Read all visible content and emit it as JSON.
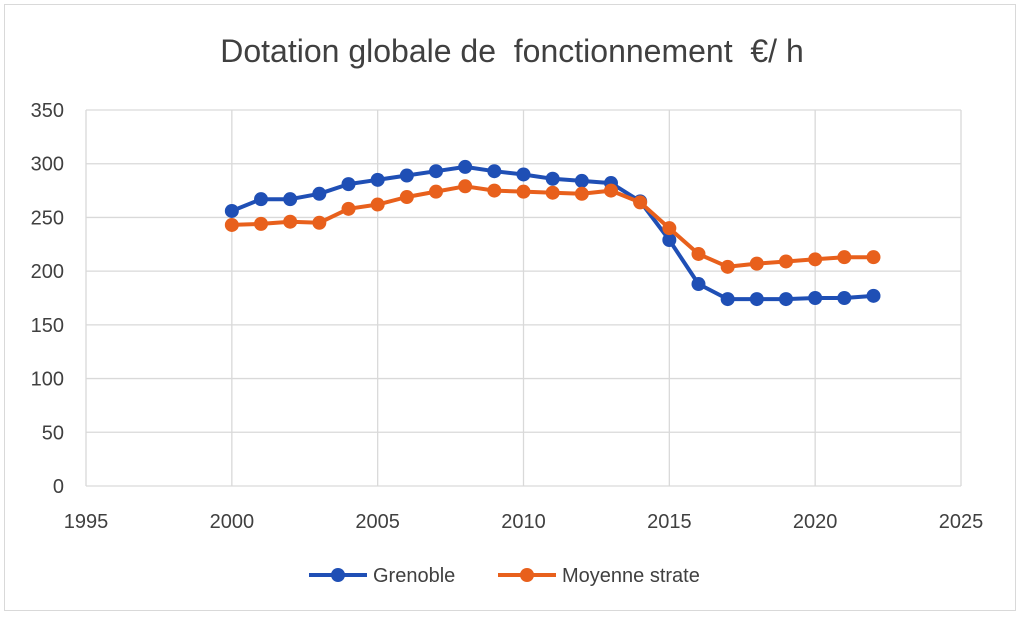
{
  "chart_data": {
    "type": "scatter",
    "title": "Dotation globale de  fonctionnement  €/ h",
    "xlim": [
      1995,
      2025
    ],
    "ylim": [
      0,
      350
    ],
    "xticks": [
      1995,
      2000,
      2005,
      2010,
      2015,
      2020,
      2025
    ],
    "yticks": [
      0,
      50,
      100,
      150,
      200,
      250,
      300,
      350
    ],
    "grid": true,
    "legend_position": "bottom",
    "x": [
      2000,
      2001,
      2002,
      2003,
      2004,
      2005,
      2006,
      2007,
      2008,
      2009,
      2010,
      2011,
      2012,
      2013,
      2014,
      2015,
      2016,
      2017,
      2018,
      2019,
      2020,
      2021,
      2022
    ],
    "series": [
      {
        "name": "Grenoble",
        "color": "#1f4fb5",
        "values": [
          256,
          267,
          267,
          272,
          281,
          285,
          289,
          293,
          297,
          293,
          290,
          286,
          284,
          282,
          265,
          229,
          188,
          174,
          174,
          174,
          175,
          175,
          177
        ]
      },
      {
        "name": "Moyenne strate",
        "color": "#e8601c",
        "values": [
          243,
          244,
          246,
          245,
          258,
          262,
          269,
          274,
          279,
          275,
          274,
          273,
          272,
          275,
          264,
          240,
          216,
          204,
          207,
          209,
          211,
          213,
          213
        ]
      }
    ]
  }
}
